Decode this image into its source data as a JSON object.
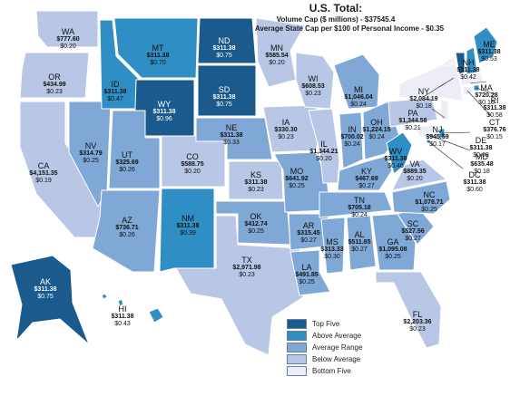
{
  "header": {
    "title": "U.S. Total:",
    "line1": "Volume Cap ($ millions) - $37545.4",
    "line2": "Average State Cap per $100 of Personal Income -   $0.35"
  },
  "colors": {
    "top_five": "#1a5a8c",
    "above_average": "#2f8fc4",
    "average_range": "#7fa8d6",
    "below_average": "#b8c7e6",
    "bottom_five": "#ecedf6",
    "border": "#ffffff"
  },
  "legend": [
    {
      "key": "top_five",
      "label": "Top Five"
    },
    {
      "key": "above_average",
      "label": "Above Average"
    },
    {
      "key": "average_range",
      "label": "Average Range"
    },
    {
      "key": "below_average",
      "label": "Below Average"
    },
    {
      "key": "bottom_five",
      "label": "Bottom Five"
    }
  ],
  "states": {
    "WA": {
      "vol": "$777.60",
      "cap": "$0.20",
      "cat": "below_average"
    },
    "OR": {
      "vol": "$434.99",
      "cap": "$0.23",
      "cat": "below_average"
    },
    "CA": {
      "vol": "$4,151.35",
      "cap": "$0.19",
      "cat": "below_average"
    },
    "NV": {
      "vol": "$314.79",
      "cap": "$0.25",
      "cat": "average_range"
    },
    "ID": {
      "vol": "$311.38",
      "cap": "$0.47",
      "cat": "above_average"
    },
    "MT": {
      "vol": "$311.38",
      "cap": "$0.70",
      "cat": "above_average"
    },
    "WY": {
      "vol": "$311.38",
      "cap": "$0.96",
      "cat": "top_five"
    },
    "UT": {
      "vol": "$325.69",
      "cap": "$0.26",
      "cat": "average_range"
    },
    "AZ": {
      "vol": "$736.71",
      "cap": "$0.26",
      "cat": "average_range"
    },
    "CO": {
      "vol": "$588.75",
      "cap": "$0.20",
      "cat": "below_average"
    },
    "NM": {
      "vol": "$311.38",
      "cap": "$0.39",
      "cat": "above_average"
    },
    "ND": {
      "vol": "$311.38",
      "cap": "$0.75",
      "cat": "top_five"
    },
    "SD": {
      "vol": "$311.38",
      "cap": "$0.75",
      "cat": "top_five"
    },
    "NE": {
      "vol": "$311.38",
      "cap": "$0.33",
      "cat": "average_range"
    },
    "KS": {
      "vol": "$311.38",
      "cap": "$0.23",
      "cat": "below_average"
    },
    "OK": {
      "vol": "$412.74",
      "cap": "$0.25",
      "cat": "average_range"
    },
    "TX": {
      "vol": "$2,971.98",
      "cap": "$0.23",
      "cat": "below_average"
    },
    "MN": {
      "vol": "$585.54",
      "cap": "$0.20",
      "cat": "below_average"
    },
    "IA": {
      "vol": "$330.30",
      "cap": "$0.23",
      "cat": "below_average"
    },
    "MO": {
      "vol": "$641.92",
      "cap": "$0.25",
      "cat": "average_range"
    },
    "AR": {
      "vol": "$315.45",
      "cap": "$0.27",
      "cat": "average_range"
    },
    "LA": {
      "vol": "$491.85",
      "cap": "$0.25",
      "cat": "average_range"
    },
    "WI": {
      "vol": "$608.53",
      "cap": "$0.23",
      "cat": "below_average"
    },
    "IL": {
      "vol": "$1,344.21",
      "cap": "$0.20",
      "cat": "below_average"
    },
    "MI": {
      "vol": "$1,046.04",
      "cap": "$0.24",
      "cat": "average_range"
    },
    "IN": {
      "vol": "$700.02",
      "cap": "$0.24",
      "cat": "average_range"
    },
    "OH": {
      "vol": "$1,224.15",
      "cap": "$0.24",
      "cat": "average_range"
    },
    "KY": {
      "vol": "$467.69",
      "cap": "$0.27",
      "cat": "average_range"
    },
    "TN": {
      "vol": "$705.18",
      "cap": "$0.24",
      "cat": "average_range"
    },
    "MS": {
      "vol": "$313.33",
      "cap": "$0.30",
      "cat": "average_range"
    },
    "AL": {
      "vol": "$511.85",
      "cap": "$0.27",
      "cat": "average_range"
    },
    "GA": {
      "vol": "$1,095.08",
      "cap": "$0.25",
      "cat": "average_range"
    },
    "FL": {
      "vol": "$2,203.36",
      "cap": "$0.23",
      "cat": "below_average"
    },
    "SC": {
      "vol": "$527.56",
      "cap": "$0.27",
      "cat": "average_range"
    },
    "NC": {
      "vol": "$1,078.71",
      "cap": "$0.25",
      "cat": "average_range"
    },
    "VA": {
      "vol": "$889.35",
      "cap": "$0.20",
      "cat": "below_average"
    },
    "WV": {
      "vol": "$311.38",
      "cap": "$0.46",
      "cat": "above_average"
    },
    "PA": {
      "vol": "$1,344.58",
      "cap": "$0.21",
      "cat": "below_average"
    },
    "NY": {
      "vol": "$2,084.19",
      "cap": "$0.18",
      "cat": "bottom_five"
    },
    "VT": {
      "vol": "$311.38",
      "cap": "$1.00",
      "cat": "top_five"
    },
    "NH": {
      "vol": "$311.38",
      "cap": "$0.42",
      "cat": "above_average"
    },
    "ME": {
      "vol": "$311.38",
      "cap": "$0.53",
      "cat": "above_average"
    },
    "MA": {
      "vol": "$720.28",
      "cap": "$0.16",
      "cat": "bottom_five"
    },
    "RI": {
      "vol": "$311.38",
      "cap": "$0.58",
      "cat": "above_average"
    },
    "CT": {
      "vol": "$376.76",
      "cap": "$0.15",
      "cat": "bottom_five"
    },
    "NJ": {
      "vol": "$945.59",
      "cap": "$0.17",
      "cat": "bottom_five"
    },
    "DE": {
      "vol": "$311.38",
      "cap": "$0.68",
      "cat": "above_average"
    },
    "MD": {
      "vol": "$635.48",
      "cap": "$0.18",
      "cat": "bottom_five"
    },
    "DC": {
      "vol": "$311.38",
      "cap": "$0.60",
      "cat": "above_average"
    },
    "AK": {
      "vol": "$311.38",
      "cap": "$0.75",
      "cat": "top_five"
    },
    "HI": {
      "vol": "$311.38",
      "cap": "$0.43",
      "cat": "above_average"
    }
  }
}
